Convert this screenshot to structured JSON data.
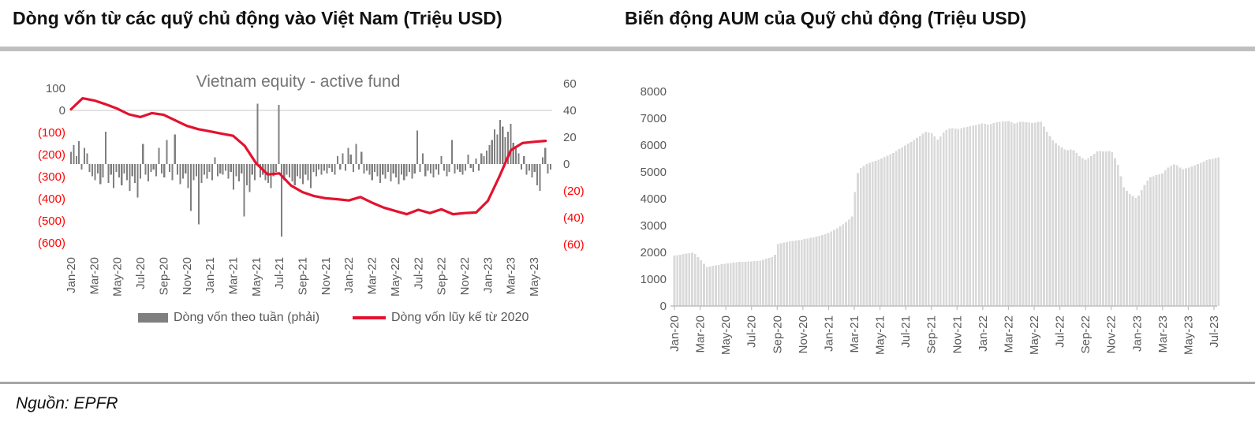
{
  "header": {
    "left_title": "Dòng vốn từ các quỹ chủ động vào Việt Nam (Triệu USD)",
    "right_title": "Biến động AUM của Quỹ chủ động (Triệu USD)"
  },
  "footer": {
    "source_label": "Nguồn: EPFR"
  },
  "colors": {
    "flow_bar": "#7f7f7f",
    "flow_line": "#e3122f",
    "aum_bar": "#d9d9d9",
    "axis_text": "#595959",
    "negative_text": "#ff0000",
    "gridline": "#d9d9d9",
    "axis_line": "#bfbfbf",
    "chart_title": "#757575",
    "divider_top": "#bfbfbf",
    "divider_bottom": "#a6a6a6"
  },
  "chart_data": [
    {
      "id": "weekly-flows",
      "type": "bar+line",
      "title": "Vietnam equity - active fund",
      "left_axis": {
        "unit": "Triệu USD",
        "range": [
          -600,
          100
        ],
        "tick_values": [
          100,
          0,
          -100,
          -200,
          -300,
          -400,
          -500,
          -600
        ],
        "tick_labels": [
          "100",
          "0",
          "(100)",
          "(200)",
          "(300)",
          "(400)",
          "(500)",
          "(600)"
        ]
      },
      "right_axis": {
        "unit": "Triệu USD",
        "range": [
          -60,
          60
        ],
        "tick_values": [
          60,
          40,
          20,
          0,
          -20,
          -40,
          -60
        ],
        "tick_labels": [
          "60",
          "40",
          "20",
          "0",
          "(20)",
          "(40)",
          "(60)"
        ]
      },
      "x_tick_labels": [
        "Jan-20",
        "Mar-20",
        "May-20",
        "Jul-20",
        "Sep-20",
        "Nov-20",
        "Jan-21",
        "Mar-21",
        "May-21",
        "Jul-21",
        "Sep-21",
        "Nov-21",
        "Jan-22",
        "Mar-22",
        "May-22",
        "Jul-22",
        "Sep-22",
        "Nov-22",
        "Jan-23",
        "Mar-23",
        "May-23"
      ],
      "legend_position": "bottom",
      "grid": "single-zero-line",
      "series": [
        {
          "name": "Dòng vốn theo tuần (phải)",
          "type": "bar",
          "axis": "right",
          "frequency": "weekly",
          "values": [
            9,
            14,
            6,
            17,
            -4,
            12,
            8,
            -6,
            -9,
            -12,
            -7,
            -15,
            -10,
            24,
            -14,
            -8,
            -18,
            -6,
            -10,
            -16,
            -7,
            -12,
            -20,
            -9,
            -14,
            -25,
            -11,
            15,
            -8,
            -13,
            -6,
            -4,
            -9,
            12,
            -7,
            -10,
            18,
            -6,
            -12,
            22,
            -8,
            -15,
            -11,
            -7,
            -18,
            -35,
            -12,
            -9,
            -45,
            -14,
            -8,
            -11,
            -6,
            -12,
            5,
            -9,
            -7,
            -8,
            -5,
            -11,
            -6,
            -19,
            -9,
            -13,
            -7,
            -39,
            -16,
            -21,
            -8,
            -12,
            45,
            -10,
            -8,
            -12,
            -14,
            -18,
            -9,
            -6,
            44,
            -54,
            -12,
            -8,
            -10,
            -13,
            -16,
            -9,
            -11,
            -15,
            -8,
            -12,
            -18,
            -6,
            -9,
            -4,
            -8,
            -5,
            -7,
            -3,
            -6,
            -8,
            6,
            -4,
            8,
            -5,
            12,
            7,
            -6,
            15,
            -4,
            9,
            -7,
            -5,
            -8,
            -12,
            -6,
            -9,
            -14,
            -8,
            -11,
            -6,
            -13,
            -7,
            -10,
            -15,
            -8,
            -12,
            -9,
            -6,
            -11,
            -7,
            25,
            -6,
            8,
            -9,
            -5,
            -7,
            -10,
            -4,
            -8,
            6,
            -5,
            -9,
            -6,
            18,
            -7,
            -4,
            -6,
            -8,
            -5,
            7,
            -3,
            -6,
            4,
            -5,
            8,
            6,
            10,
            14,
            18,
            26,
            22,
            33,
            28,
            20,
            24,
            30,
            16,
            12,
            8,
            -4,
            6,
            -8,
            -5,
            -10,
            -6,
            -16,
            -20,
            5,
            12,
            -7,
            -4
          ]
        },
        {
          "name": "Dòng vốn lũy kế từ 2020",
          "type": "line",
          "axis": "left",
          "frequency": "monthly",
          "months": [
            "Jan-20",
            "Feb-20",
            "Mar-20",
            "Apr-20",
            "May-20",
            "Jun-20",
            "Jul-20",
            "Aug-20",
            "Sep-20",
            "Oct-20",
            "Nov-20",
            "Dec-20",
            "Jan-21",
            "Feb-21",
            "Mar-21",
            "Apr-21",
            "May-21",
            "Jun-21",
            "Jul-21",
            "Aug-21",
            "Sep-21",
            "Oct-21",
            "Nov-21",
            "Dec-21",
            "Jan-22",
            "Feb-22",
            "Mar-22",
            "Apr-22",
            "May-22",
            "Jun-22",
            "Jul-22",
            "Aug-22",
            "Sep-22",
            "Oct-22",
            "Nov-22",
            "Dec-22",
            "Jan-23",
            "Feb-23",
            "Mar-23",
            "Apr-23",
            "May-23",
            "Jun-23"
          ],
          "values": [
            5,
            55,
            45,
            28,
            8,
            -18,
            -30,
            -12,
            -20,
            -45,
            -70,
            -85,
            -95,
            -105,
            -115,
            -160,
            -240,
            -290,
            -285,
            -340,
            -370,
            -388,
            -398,
            -402,
            -408,
            -392,
            -418,
            -440,
            -455,
            -470,
            -450,
            -465,
            -448,
            -470,
            -465,
            -462,
            -410,
            -300,
            -180,
            -148,
            -142,
            -138
          ]
        }
      ]
    },
    {
      "id": "aum",
      "type": "bar",
      "title": "Biến động AUM của Quỹ chủ động (Triệu USD)",
      "ylim": [
        0,
        8000
      ],
      "y_tick_labels": [
        "8000",
        "7000",
        "6000",
        "5000",
        "4000",
        "3000",
        "2000",
        "1000",
        "0"
      ],
      "y_tick_values": [
        8000,
        7000,
        6000,
        5000,
        4000,
        3000,
        2000,
        1000,
        0
      ],
      "x_tick_labels": [
        "Jan-20",
        "Mar-20",
        "May-20",
        "Jul-20",
        "Sep-20",
        "Nov-20",
        "Jan-21",
        "Mar-21",
        "May-21",
        "Jul-21",
        "Sep-21",
        "Nov-21",
        "Jan-22",
        "Mar-22",
        "May-22",
        "Jul-22",
        "Sep-22",
        "Nov-22",
        "Jan-23",
        "Mar-23",
        "May-23",
        "Jul-23"
      ],
      "series": [
        {
          "name": "AUM",
          "type": "bar",
          "frequency": "weekly",
          "note": "breakpoints are [month_index_from_Jan-20, AUM value]; weekly bars interpolate between them",
          "breakpoints": [
            [
              0,
              1880
            ],
            [
              1,
              1960
            ],
            [
              1.5,
              2000
            ],
            [
              2,
              1750
            ],
            [
              2.5,
              1450
            ],
            [
              3,
              1500
            ],
            [
              4,
              1580
            ],
            [
              5,
              1640
            ],
            [
              6,
              1660
            ],
            [
              6.8,
              1700
            ],
            [
              7,
              1750
            ],
            [
              7.8,
              1850
            ],
            [
              8,
              2300
            ],
            [
              9,
              2420
            ],
            [
              10,
              2480
            ],
            [
              11,
              2580
            ],
            [
              12,
              2720
            ],
            [
              13,
              3000
            ],
            [
              13.8,
              3300
            ],
            [
              14.2,
              4900
            ],
            [
              14.5,
              5150
            ],
            [
              15,
              5300
            ],
            [
              16,
              5480
            ],
            [
              17,
              5700
            ],
            [
              18,
              6000
            ],
            [
              19,
              6300
            ],
            [
              19.5,
              6500
            ],
            [
              20,
              6450
            ],
            [
              20.5,
              6200
            ],
            [
              21,
              6500
            ],
            [
              21.5,
              6650
            ],
            [
              22,
              6600
            ],
            [
              23,
              6700
            ],
            [
              24,
              6820
            ],
            [
              24.5,
              6750
            ],
            [
              25,
              6850
            ],
            [
              26,
              6900
            ],
            [
              26.5,
              6800
            ],
            [
              27,
              6880
            ],
            [
              28,
              6820
            ],
            [
              28.5,
              6900
            ],
            [
              29,
              6500
            ],
            [
              29.5,
              6150
            ],
            [
              30,
              5950
            ],
            [
              30.5,
              5800
            ],
            [
              31,
              5850
            ],
            [
              31.5,
              5600
            ],
            [
              32,
              5450
            ],
            [
              32.5,
              5600
            ],
            [
              33,
              5800
            ],
            [
              33.5,
              5750
            ],
            [
              34,
              5800
            ],
            [
              34.5,
              5300
            ],
            [
              35,
              4400
            ],
            [
              35.5,
              4150
            ],
            [
              36,
              4000
            ],
            [
              36.5,
              4450
            ],
            [
              37,
              4800
            ],
            [
              38,
              4950
            ],
            [
              38.5,
              5200
            ],
            [
              39,
              5300
            ],
            [
              39.5,
              5100
            ],
            [
              40,
              5150
            ],
            [
              40.5,
              5250
            ],
            [
              41,
              5350
            ],
            [
              41.5,
              5450
            ],
            [
              42,
              5500
            ],
            [
              42.3,
              5550
            ]
          ]
        }
      ]
    }
  ]
}
